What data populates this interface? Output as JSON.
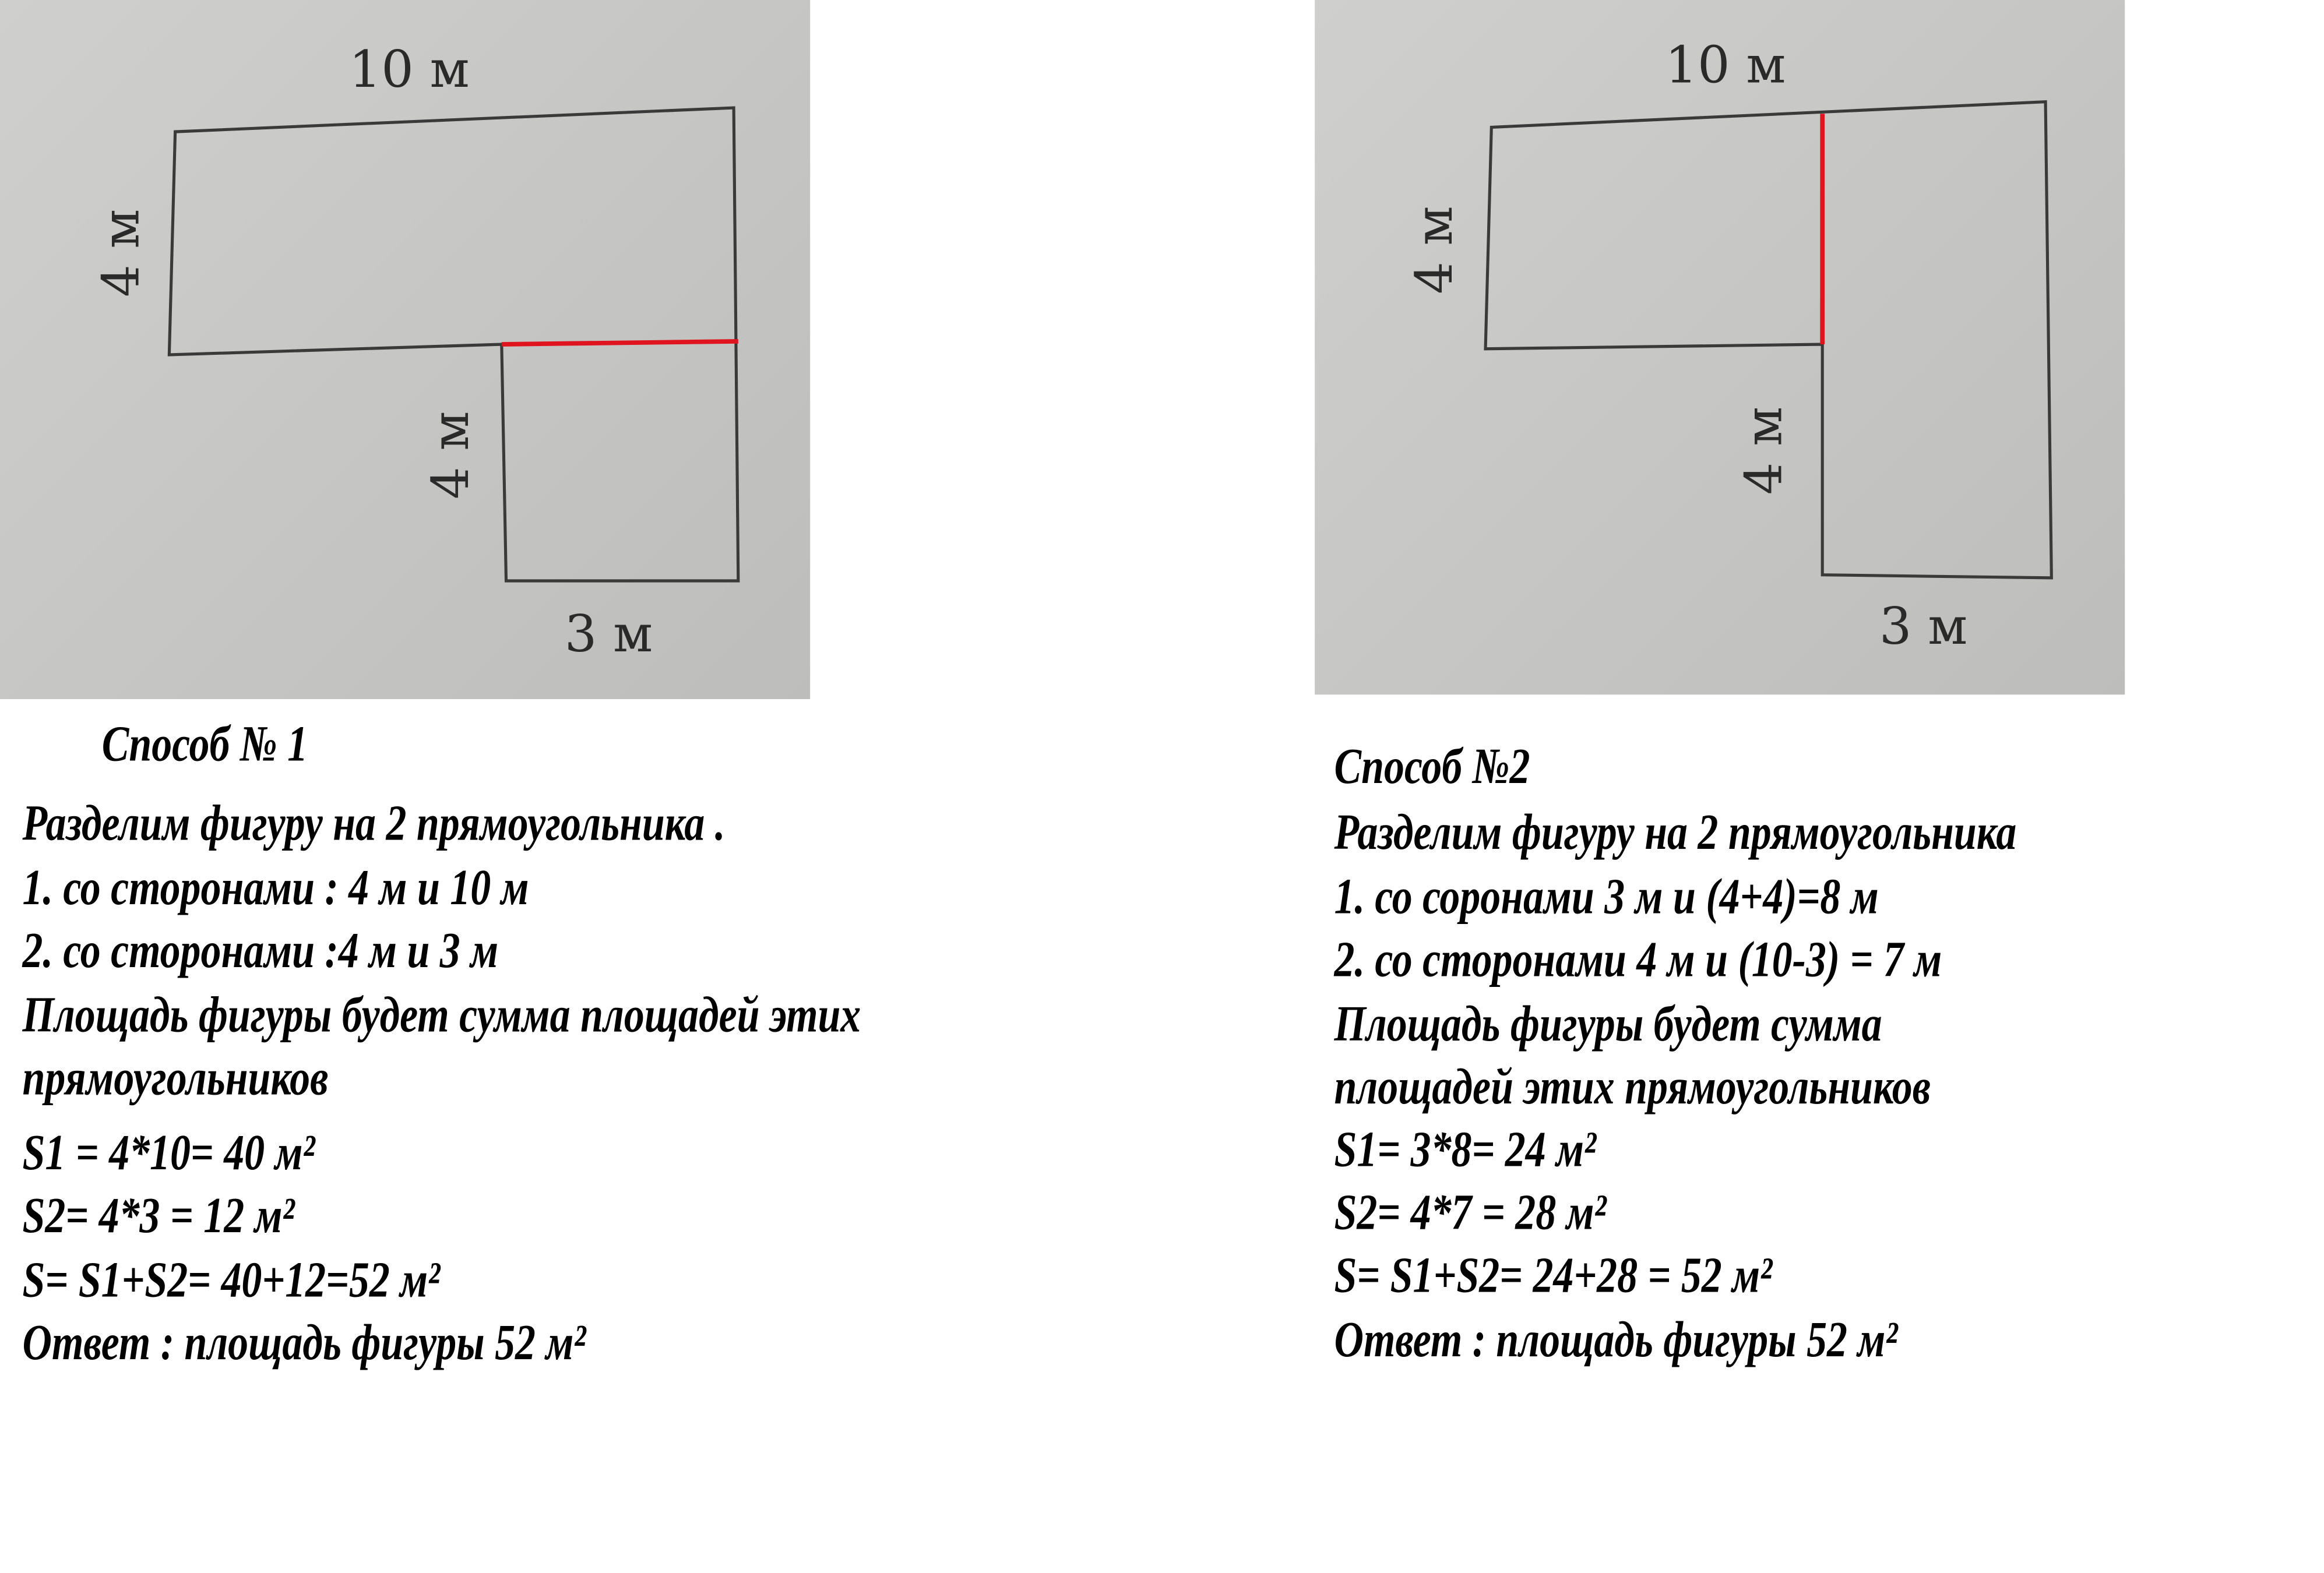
{
  "method1": {
    "figure_labels": {
      "top": "10 м",
      "left": "4 м",
      "inner": "4 м",
      "bottom": "3 м"
    },
    "title": "Способ № 1",
    "lines": [
      "Разделим фигуру на 2 прямоугольника .",
      "1. со сторонами : 4 м и 10 м",
      "2. со сторонами :4 м и 3 м",
      "Площадь фигуры будет сумма площадей этих",
      "прямоугольников",
      "S1 = 4*10= 40 м²",
      "S2= 4*3 = 12 м²",
      "S= S1+S2= 40+12=52 м²",
      "Ответ : площадь фигуры 52 м²"
    ]
  },
  "method2": {
    "figure_labels": {
      "top": "10 м",
      "left": "4 м",
      "inner": "4 м",
      "bottom": "3 м"
    },
    "title": "Способ №2",
    "lines": [
      "Разделим фигуру на 2 прямоугольника",
      "1. со соронами 3 м и (4+4)=8 м",
      "2. со сторонами 4 м и (10-3) = 7 м",
      "Площадь фигуры будет сумма",
      "площадей этих прямоугольников",
      "S1= 3*8= 24 м²",
      "S2= 4*7 = 28 м²",
      "S= S1+S2= 24+28 = 52 м²",
      "Ответ : площадь фигуры 52 м²"
    ]
  },
  "colors": {
    "divider_line": "#e0141e",
    "figure_line": "#3a3a3a",
    "photo_bg": "#c8c8c6"
  }
}
